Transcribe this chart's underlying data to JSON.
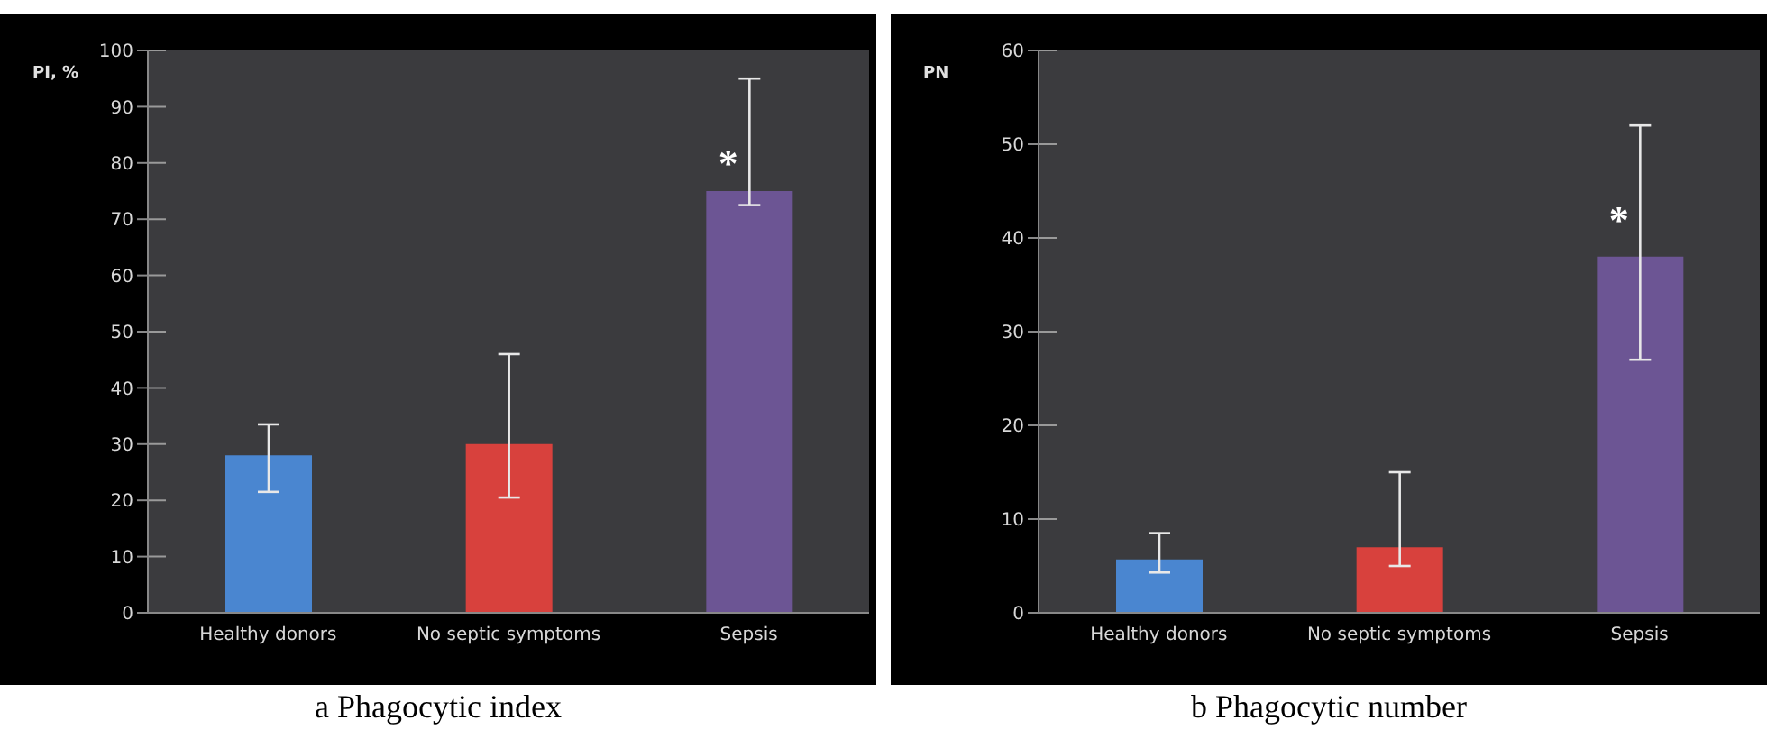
{
  "chart_data": [
    {
      "type": "bar",
      "title": "a Phagocytic index",
      "ylabel": "PI, %",
      "categories": [
        "Healthy donors",
        "No septic symptoms",
        "Sepsis"
      ],
      "values": [
        28,
        30,
        75
      ],
      "colors": [
        "#4a86d0",
        "#d8413d",
        "#6c5594"
      ],
      "errors": [
        [
          21.5,
          33.5
        ],
        [
          20.5,
          46
        ],
        [
          72.5,
          95
        ]
      ],
      "ylim": [
        0,
        100
      ],
      "yticks": [
        0,
        10,
        20,
        30,
        40,
        50,
        60,
        70,
        80,
        90,
        100
      ],
      "grid": "y",
      "annotations": [
        {
          "text": "*",
          "x": "Sepsis",
          "y": 80
        }
      ]
    },
    {
      "type": "bar",
      "title": "b Phagocytic number",
      "ylabel": "PN",
      "categories": [
        "Healthy donors",
        "No septic symptoms",
        "Sepsis"
      ],
      "values": [
        5.7,
        7,
        38
      ],
      "colors": [
        "#4a86d0",
        "#d8413d",
        "#6c5594"
      ],
      "errors": [
        [
          4.3,
          8.5
        ],
        [
          5,
          15
        ],
        [
          27,
          52
        ]
      ],
      "ylim": [
        0,
        60
      ],
      "yticks": [
        0,
        10,
        20,
        30,
        40,
        50,
        60
      ],
      "grid": "y",
      "annotations": [
        {
          "text": "*",
          "x": "Sepsis",
          "y": 42
        }
      ]
    }
  ]
}
